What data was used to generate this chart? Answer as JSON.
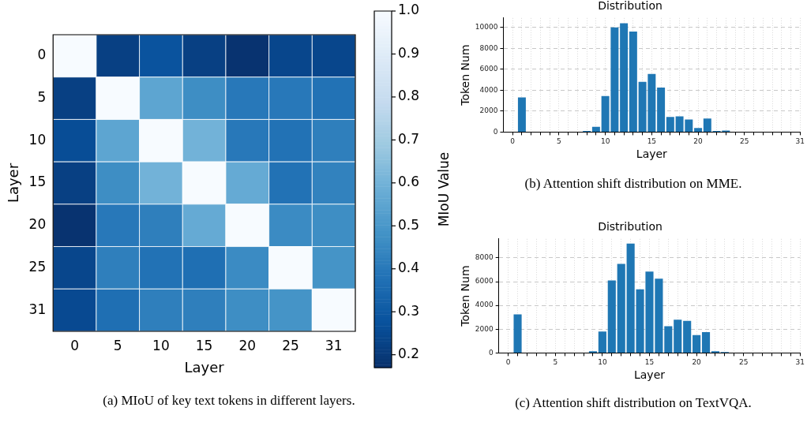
{
  "chart_data": [
    {
      "type": "heatmap",
      "xlabel": "Layer",
      "ylabel": "Layer",
      "clabel": "MIoU Value",
      "categories": [
        "0",
        "5",
        "10",
        "15",
        "20",
        "25",
        "31"
      ],
      "y_categories": [
        "0",
        "5",
        "10",
        "15",
        "20",
        "25",
        "31"
      ],
      "cells": [
        [
          1.0,
          0.22,
          0.28,
          0.22,
          0.18,
          0.24,
          0.24
        ],
        [
          0.22,
          1.0,
          0.55,
          0.47,
          0.4,
          0.4,
          0.38
        ],
        [
          0.26,
          0.55,
          1.0,
          0.6,
          0.4,
          0.38,
          0.42
        ],
        [
          0.22,
          0.47,
          0.6,
          1.0,
          0.57,
          0.38,
          0.43
        ],
        [
          0.18,
          0.4,
          0.42,
          0.57,
          1.0,
          0.46,
          0.47
        ],
        [
          0.24,
          0.42,
          0.38,
          0.37,
          0.46,
          1.0,
          0.49
        ],
        [
          0.25,
          0.37,
          0.42,
          0.42,
          0.47,
          0.49,
          1.0
        ]
      ],
      "clim": [
        0.17,
        1.0
      ],
      "cticks": [
        0.2,
        0.3,
        0.4,
        0.5,
        0.6,
        0.7,
        0.8,
        0.9,
        {
          "value": 1,
          "label": "1.0"
        }
      ],
      "annotations": [
        "(a) MIoU of key text tokens in different layers."
      ]
    },
    {
      "type": "bar",
      "title": "Distribution",
      "xlabel": "Layer",
      "ylabel": "Token Num",
      "color": "#1f77b4",
      "grid": true,
      "x": [
        1,
        2,
        3,
        4,
        5,
        6,
        7,
        8,
        9,
        10,
        11,
        12,
        13,
        14,
        15,
        16,
        17,
        18,
        19,
        20,
        21,
        22,
        23,
        24,
        25,
        26,
        27,
        28,
        29,
        30
      ],
      "values": [
        3300,
        0,
        0,
        0,
        0,
        0,
        0,
        100,
        500,
        3450,
        10000,
        10400,
        9600,
        4800,
        5550,
        4250,
        1450,
        1500,
        1200,
        380,
        1300,
        100,
        150,
        0,
        0,
        0,
        0,
        0,
        0,
        0
      ],
      "xlim": [
        -1,
        31
      ],
      "xticks": [
        0,
        {
          "value": 1,
          "label": null
        },
        {
          "value": 2,
          "label": null
        },
        {
          "value": 3,
          "label": null
        },
        {
          "value": 4,
          "label": null
        },
        5,
        {
          "value": 6,
          "label": null
        },
        {
          "value": 7,
          "label": null
        },
        {
          "value": 8,
          "label": null
        },
        {
          "value": 9,
          "label": null
        },
        10,
        {
          "value": 11,
          "label": null
        },
        {
          "value": 12,
          "label": null
        },
        {
          "value": 13,
          "label": null
        },
        {
          "value": 14,
          "label": null
        },
        15,
        {
          "value": 16,
          "label": null
        },
        {
          "value": 17,
          "label": null
        },
        {
          "value": 18,
          "label": null
        },
        {
          "value": 19,
          "label": null
        },
        20,
        {
          "value": 21,
          "label": null
        },
        {
          "value": 22,
          "label": null
        },
        {
          "value": 23,
          "label": null
        },
        {
          "value": 24,
          "label": null
        },
        25,
        {
          "value": 26,
          "label": null
        },
        {
          "value": 27,
          "label": null
        },
        {
          "value": 28,
          "label": null
        },
        {
          "value": 29,
          "label": null
        },
        {
          "value": 30,
          "label": null
        },
        31
      ],
      "ylim": [
        0,
        10900
      ],
      "yticks": [
        0,
        2000,
        4000,
        6000,
        8000,
        10000
      ],
      "annotations": [
        "(b) Attention shift distribution on MME."
      ]
    },
    {
      "type": "bar",
      "title": "Distribution",
      "xlabel": "Layer",
      "ylabel": "Token Num",
      "color": "#1f77b4",
      "grid": true,
      "x": [
        1,
        2,
        3,
        4,
        5,
        6,
        7,
        8,
        9,
        10,
        11,
        12,
        13,
        14,
        15,
        16,
        17,
        18,
        19,
        20,
        21,
        22,
        23,
        24,
        25,
        26,
        27,
        28,
        29,
        30
      ],
      "values": [
        3250,
        0,
        0,
        0,
        0,
        0,
        0,
        0,
        150,
        1800,
        6100,
        7500,
        9200,
        5350,
        6850,
        6250,
        2250,
        2800,
        2700,
        1500,
        1750,
        150,
        80,
        0,
        0,
        0,
        0,
        0,
        0,
        0
      ],
      "xlim": [
        -1,
        31
      ],
      "xticks": [
        0,
        {
          "value": 1,
          "label": null
        },
        {
          "value": 2,
          "label": null
        },
        {
          "value": 3,
          "label": null
        },
        {
          "value": 4,
          "label": null
        },
        5,
        {
          "value": 6,
          "label": null
        },
        {
          "value": 7,
          "label": null
        },
        {
          "value": 8,
          "label": null
        },
        {
          "value": 9,
          "label": null
        },
        10,
        {
          "value": 11,
          "label": null
        },
        {
          "value": 12,
          "label": null
        },
        {
          "value": 13,
          "label": null
        },
        {
          "value": 14,
          "label": null
        },
        15,
        {
          "value": 16,
          "label": null
        },
        {
          "value": 17,
          "label": null
        },
        {
          "value": 18,
          "label": null
        },
        {
          "value": 19,
          "label": null
        },
        20,
        {
          "value": 21,
          "label": null
        },
        {
          "value": 22,
          "label": null
        },
        {
          "value": 23,
          "label": null
        },
        {
          "value": 24,
          "label": null
        },
        25,
        {
          "value": 26,
          "label": null
        },
        {
          "value": 27,
          "label": null
        },
        {
          "value": 28,
          "label": null
        },
        {
          "value": 29,
          "label": null
        },
        {
          "value": 30,
          "label": null
        },
        31
      ],
      "ylim": [
        0,
        9600
      ],
      "yticks": [
        0,
        2000,
        4000,
        6000,
        8000
      ],
      "annotations": [
        "(c) Attention shift distribution on TextVQA."
      ]
    }
  ]
}
